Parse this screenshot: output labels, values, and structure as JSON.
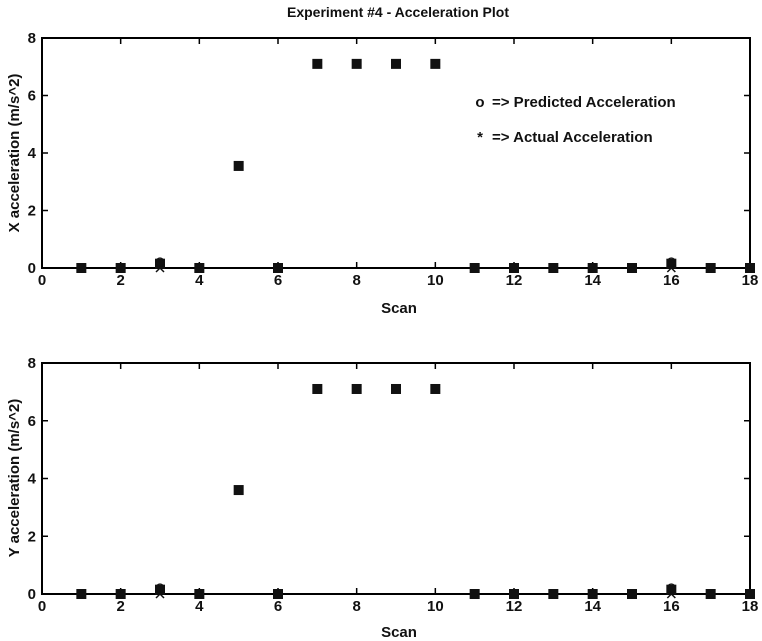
{
  "chart_data": [
    {
      "type": "scatter",
      "title": "Experiment #4 - Acceleration Plot",
      "xlabel": "Scan",
      "ylabel": "X acceleration (m/s^2)",
      "xlim": [
        0,
        18
      ],
      "ylim": [
        0,
        8
      ],
      "xticks": [
        "0",
        "2",
        "4",
        "6",
        "8",
        "10",
        "12",
        "14",
        "16",
        "18"
      ],
      "yticks": [
        "0",
        "2",
        "4",
        "6",
        "8"
      ],
      "grid": false,
      "legend": {
        "placement": "right",
        "entries": [
          {
            "marker": "o",
            "label": "=> Predicted Acceleration"
          },
          {
            "marker": "*",
            "label": "=> Actual Acceleration"
          }
        ]
      },
      "series": [
        {
          "name": "Predicted Acceleration",
          "marker": "square",
          "x": [
            1,
            2,
            3,
            4,
            5,
            6,
            7,
            8,
            9,
            10,
            11,
            12,
            13,
            14,
            15,
            16,
            17,
            18
          ],
          "values": [
            0,
            0,
            0.15,
            0,
            3.55,
            0,
            7.1,
            7.1,
            7.1,
            7.1,
            0,
            0,
            0,
            0,
            0,
            0.15,
            0,
            0
          ]
        },
        {
          "name": "Actual Acceleration",
          "marker": "x",
          "x": [
            3,
            16
          ],
          "values": [
            0,
            0
          ]
        }
      ]
    },
    {
      "type": "scatter",
      "title": "",
      "xlabel": "Scan",
      "ylabel": "Y acceleration (m/s^2)",
      "xlim": [
        0,
        18
      ],
      "ylim": [
        0,
        8
      ],
      "xticks": [
        "0",
        "2",
        "4",
        "6",
        "8",
        "10",
        "12",
        "14",
        "16",
        "18"
      ],
      "yticks": [
        "0",
        "2",
        "4",
        "6",
        "8"
      ],
      "grid": false,
      "series": [
        {
          "name": "Predicted Acceleration",
          "marker": "square",
          "x": [
            1,
            2,
            3,
            4,
            5,
            6,
            7,
            8,
            9,
            10,
            11,
            12,
            13,
            14,
            15,
            16,
            17,
            18
          ],
          "values": [
            0,
            0,
            0.15,
            0,
            3.6,
            0,
            7.1,
            7.1,
            7.1,
            7.1,
            0,
            0,
            0,
            0,
            0,
            0.15,
            0,
            0
          ]
        },
        {
          "name": "Actual Acceleration",
          "marker": "x",
          "x": [
            3,
            16
          ],
          "values": [
            0,
            0
          ]
        }
      ]
    }
  ]
}
